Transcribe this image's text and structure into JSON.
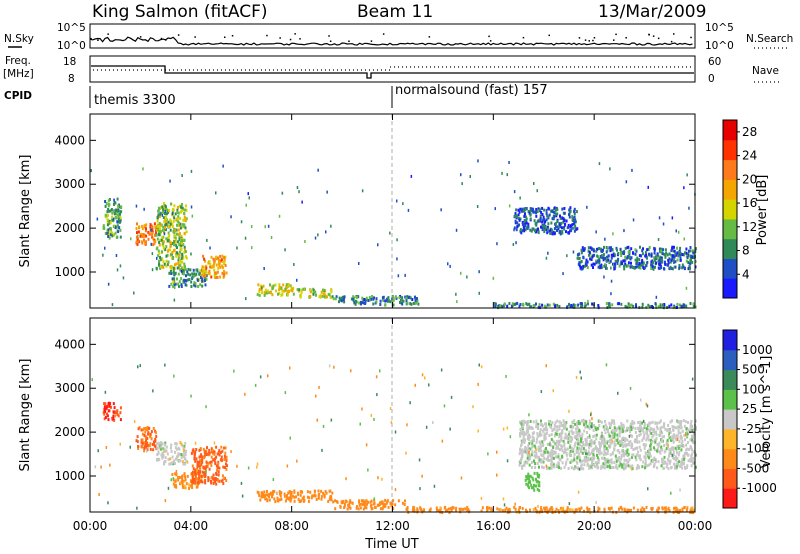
{
  "header": {
    "title": "King Salmon (fitACF)",
    "beam": "Beam 11",
    "date": "13/Mar/2009"
  },
  "strips": {
    "nsky_label": "N.Sky",
    "nsearch_label": "N.Search",
    "nsky_ticks": [
      "10^5",
      "10^0"
    ],
    "nsearch_ticks": [
      "10^5",
      "10^0"
    ],
    "freq_label_1": "Freq.",
    "freq_label_2": "[MHz]",
    "freq_ticks": [
      "18",
      "8"
    ],
    "nave_label": "Nave",
    "nave_ticks": [
      "60",
      "0"
    ],
    "cpid_label": "CPID",
    "cpid_programs": [
      {
        "name": "themis 3300",
        "start_hour": 0
      },
      {
        "name": "normalsound (fast) 157",
        "start_hour": 12
      }
    ]
  },
  "xaxis": {
    "label": "Time UT",
    "ticks": [
      "00:00",
      "04:00",
      "08:00",
      "12:00",
      "16:00",
      "20:00",
      "00:00"
    ],
    "range_hours": [
      0,
      24
    ]
  },
  "colors": {
    "power_scale": [
      "#1a1aff",
      "#1f4fc4",
      "#2e8b57",
      "#66bb44",
      "#d4d400",
      "#f5a500",
      "#ff7a1a",
      "#ff3300",
      "#e60000"
    ],
    "velocity_scale": [
      "#ff1a1a",
      "#ff5a1a",
      "#ff8a1a",
      "#ffb42a",
      "#c8c8c8",
      "#5cc14a",
      "#3a8a5a",
      "#2b5fbf",
      "#2020e0"
    ]
  },
  "chart_data": [
    {
      "type": "heatmap",
      "quantity": "power",
      "xlabel": "Time UT",
      "ylabel": "Slant Range [km]",
      "xlim": [
        0,
        24
      ],
      "ylim": [
        180,
        4600
      ],
      "yticks": [
        "1000",
        "2000",
        "3000",
        "4000"
      ],
      "colorbar_label": "Power [dB]",
      "colorbar_ticks": [
        "4",
        "8",
        "12",
        "16",
        "20",
        "24",
        "28"
      ],
      "colorbar_range": [
        0,
        30
      ],
      "regions": [
        {
          "t": [
            0.5,
            1.2
          ],
          "r": [
            1800,
            2700
          ],
          "v": 10
        },
        {
          "t": [
            1.8,
            2.6
          ],
          "r": [
            1650,
            2150
          ],
          "v": 22
        },
        {
          "t": [
            2.6,
            3.8
          ],
          "r": [
            1100,
            2600
          ],
          "v": 13
        },
        {
          "t": [
            3.1,
            4.6
          ],
          "r": [
            700,
            1100
          ],
          "v": 9
        },
        {
          "t": [
            4.4,
            5.4
          ],
          "r": [
            900,
            1400
          ],
          "v": 19
        },
        {
          "t": [
            6.6,
            8.2
          ],
          "r": [
            500,
            750
          ],
          "v": 15
        },
        {
          "t": [
            8.2,
            9.6
          ],
          "r": [
            450,
            650
          ],
          "v": 13
        },
        {
          "t": [
            9.6,
            13.0
          ],
          "r": [
            280,
            480
          ],
          "v": 8
        },
        {
          "t": [
            16.8,
            19.3
          ],
          "r": [
            1900,
            2500
          ],
          "v": 5
        },
        {
          "t": [
            19.3,
            24.0
          ],
          "r": [
            1100,
            1600
          ],
          "v": 6
        },
        {
          "t": [
            16.0,
            24.0
          ],
          "r": [
            220,
            320
          ],
          "v": 7
        }
      ]
    },
    {
      "type": "heatmap",
      "quantity": "velocity",
      "xlabel": "Time UT",
      "ylabel": "Slant Range [km]",
      "xlim": [
        0,
        24
      ],
      "ylim": [
        180,
        4600
      ],
      "yticks": [
        "1000",
        "2000",
        "3000",
        "4000"
      ],
      "colorbar_label": "Velocity [m s^-1]",
      "colorbar_ticks": [
        "-1000",
        "-500",
        "-100",
        "-25",
        "25",
        "100",
        "500",
        "1000"
      ],
      "regions": [
        {
          "t": [
            0.5,
            1.2
          ],
          "r": [
            2300,
            2700
          ],
          "v": -900
        },
        {
          "t": [
            1.8,
            2.6
          ],
          "r": [
            1600,
            2150
          ],
          "v": -600
        },
        {
          "t": [
            2.6,
            3.8
          ],
          "r": [
            1300,
            1800
          ],
          "v": 0
        },
        {
          "t": [
            3.2,
            4.4
          ],
          "r": [
            750,
            1100
          ],
          "v": -150
        },
        {
          "t": [
            4.0,
            5.4
          ],
          "r": [
            850,
            1700
          ],
          "v": -600
        },
        {
          "t": [
            6.6,
            9.6
          ],
          "r": [
            450,
            700
          ],
          "v": -300
        },
        {
          "t": [
            9.6,
            12.5
          ],
          "r": [
            280,
            480
          ],
          "v": -200
        },
        {
          "t": [
            17.2,
            17.8
          ],
          "r": [
            700,
            1100
          ],
          "v": 60
        },
        {
          "t": [
            17.0,
            24.0
          ],
          "r": [
            1200,
            2300
          ],
          "v": 5
        },
        {
          "t": [
            12.5,
            24.0
          ],
          "r": [
            200,
            320
          ],
          "v": -150
        }
      ]
    }
  ]
}
